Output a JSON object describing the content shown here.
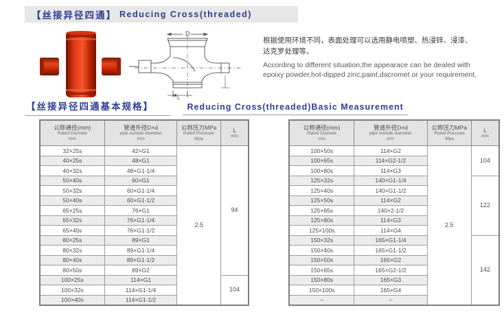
{
  "page": {
    "title_banner": {
      "cn": "【丝接异径四通】",
      "en": "Reducing Cross(threaded)"
    },
    "section2": {
      "cn": "【丝接异径四通基本规格】",
      "en": "Reducing Cross(threaded)Basic Measurement"
    },
    "description": {
      "cn_line1": "根据使用环境不同，表面处理可以选用静电喷塑、热浸锌、浸漆、",
      "cn_line2": "达克罗处理等。",
      "en_line1": "According to different situation,the appearace can be dealed with",
      "en_line2": "epoixy powder,hot-dipped zinc,paint,dacromet or your requirement,"
    },
    "drawing_labels": {
      "d": "D",
      "l": "L"
    },
    "colors": {
      "accent_blue": "#2e3d94",
      "banner_bg": "#e7e7e7",
      "fitting_red": "#cf2507",
      "table_header_bg": "#e3e3e3",
      "stripe": "#ececec"
    }
  },
  "table_header": {
    "col1": [
      "公称通径(mm)",
      "Rated Diamete",
      "mm"
    ],
    "col2": [
      "管道外径D×d",
      "pipe outside diameter",
      "mm"
    ],
    "col3": [
      "公称压力MPa",
      "Rated Pressure",
      "Mpa"
    ],
    "col4": [
      "L",
      "mm"
    ]
  },
  "left_table": {
    "rows": [
      [
        "32×25s",
        "42×G1"
      ],
      [
        "40×25s",
        "48×G1"
      ],
      [
        "40×32s",
        "48×G1-1/4"
      ],
      [
        "50×40s",
        "60×G1"
      ],
      [
        "50×32s",
        "60×G1-1/4"
      ],
      [
        "50×40s",
        "60×G1-1/2"
      ],
      [
        "65×25s",
        "76×G1"
      ],
      [
        "65×32s",
        "76×G1-1/4"
      ],
      [
        "65×40s",
        "76×G1-1/2"
      ],
      [
        "80×25s",
        "89×G1"
      ],
      [
        "80×32s",
        "89×G1-1/4"
      ],
      [
        "80×40s",
        "89×G1-1/2"
      ],
      [
        "80×50s",
        "89×G2"
      ],
      [
        "100×25s",
        "114×G1"
      ],
      [
        "100×32s",
        "114×G1-1/4"
      ],
      [
        "100×40s",
        "114×G1-1/2"
      ]
    ],
    "pressure": "2.5",
    "l_groups": [
      {
        "rows": 13,
        "value": "94"
      },
      {
        "rows": 3,
        "value": "104"
      }
    ]
  },
  "right_table": {
    "rows": [
      [
        "100×50s",
        "114×G2"
      ],
      [
        "100×65s",
        "114×G2-1/2"
      ],
      [
        "100×80s",
        "114×G3"
      ],
      [
        "125×32s",
        "140×G1-1/4"
      ],
      [
        "125×40s",
        "140×G1-1/2"
      ],
      [
        "125×50s",
        "114×G2"
      ],
      [
        "125×65s",
        "140×2-1/2"
      ],
      [
        "125×80s",
        "114×G3"
      ],
      [
        "125×100s",
        "114×G4"
      ],
      [
        "150×32s",
        "165×G1-1/4"
      ],
      [
        "150×40s",
        "165×G1-1/2"
      ],
      [
        "150×50s",
        "165×G2"
      ],
      [
        "150×65s",
        "165×G2-1/2"
      ],
      [
        "150×80s",
        "165×G3"
      ],
      [
        "150×100s",
        "165×G4"
      ],
      [
        "–",
        "–"
      ]
    ],
    "pressure": "2.5",
    "l_groups": [
      {
        "rows": 3,
        "value": "104"
      },
      {
        "rows": 6,
        "value": "122"
      },
      {
        "rows": 7,
        "value": "142"
      }
    ]
  }
}
